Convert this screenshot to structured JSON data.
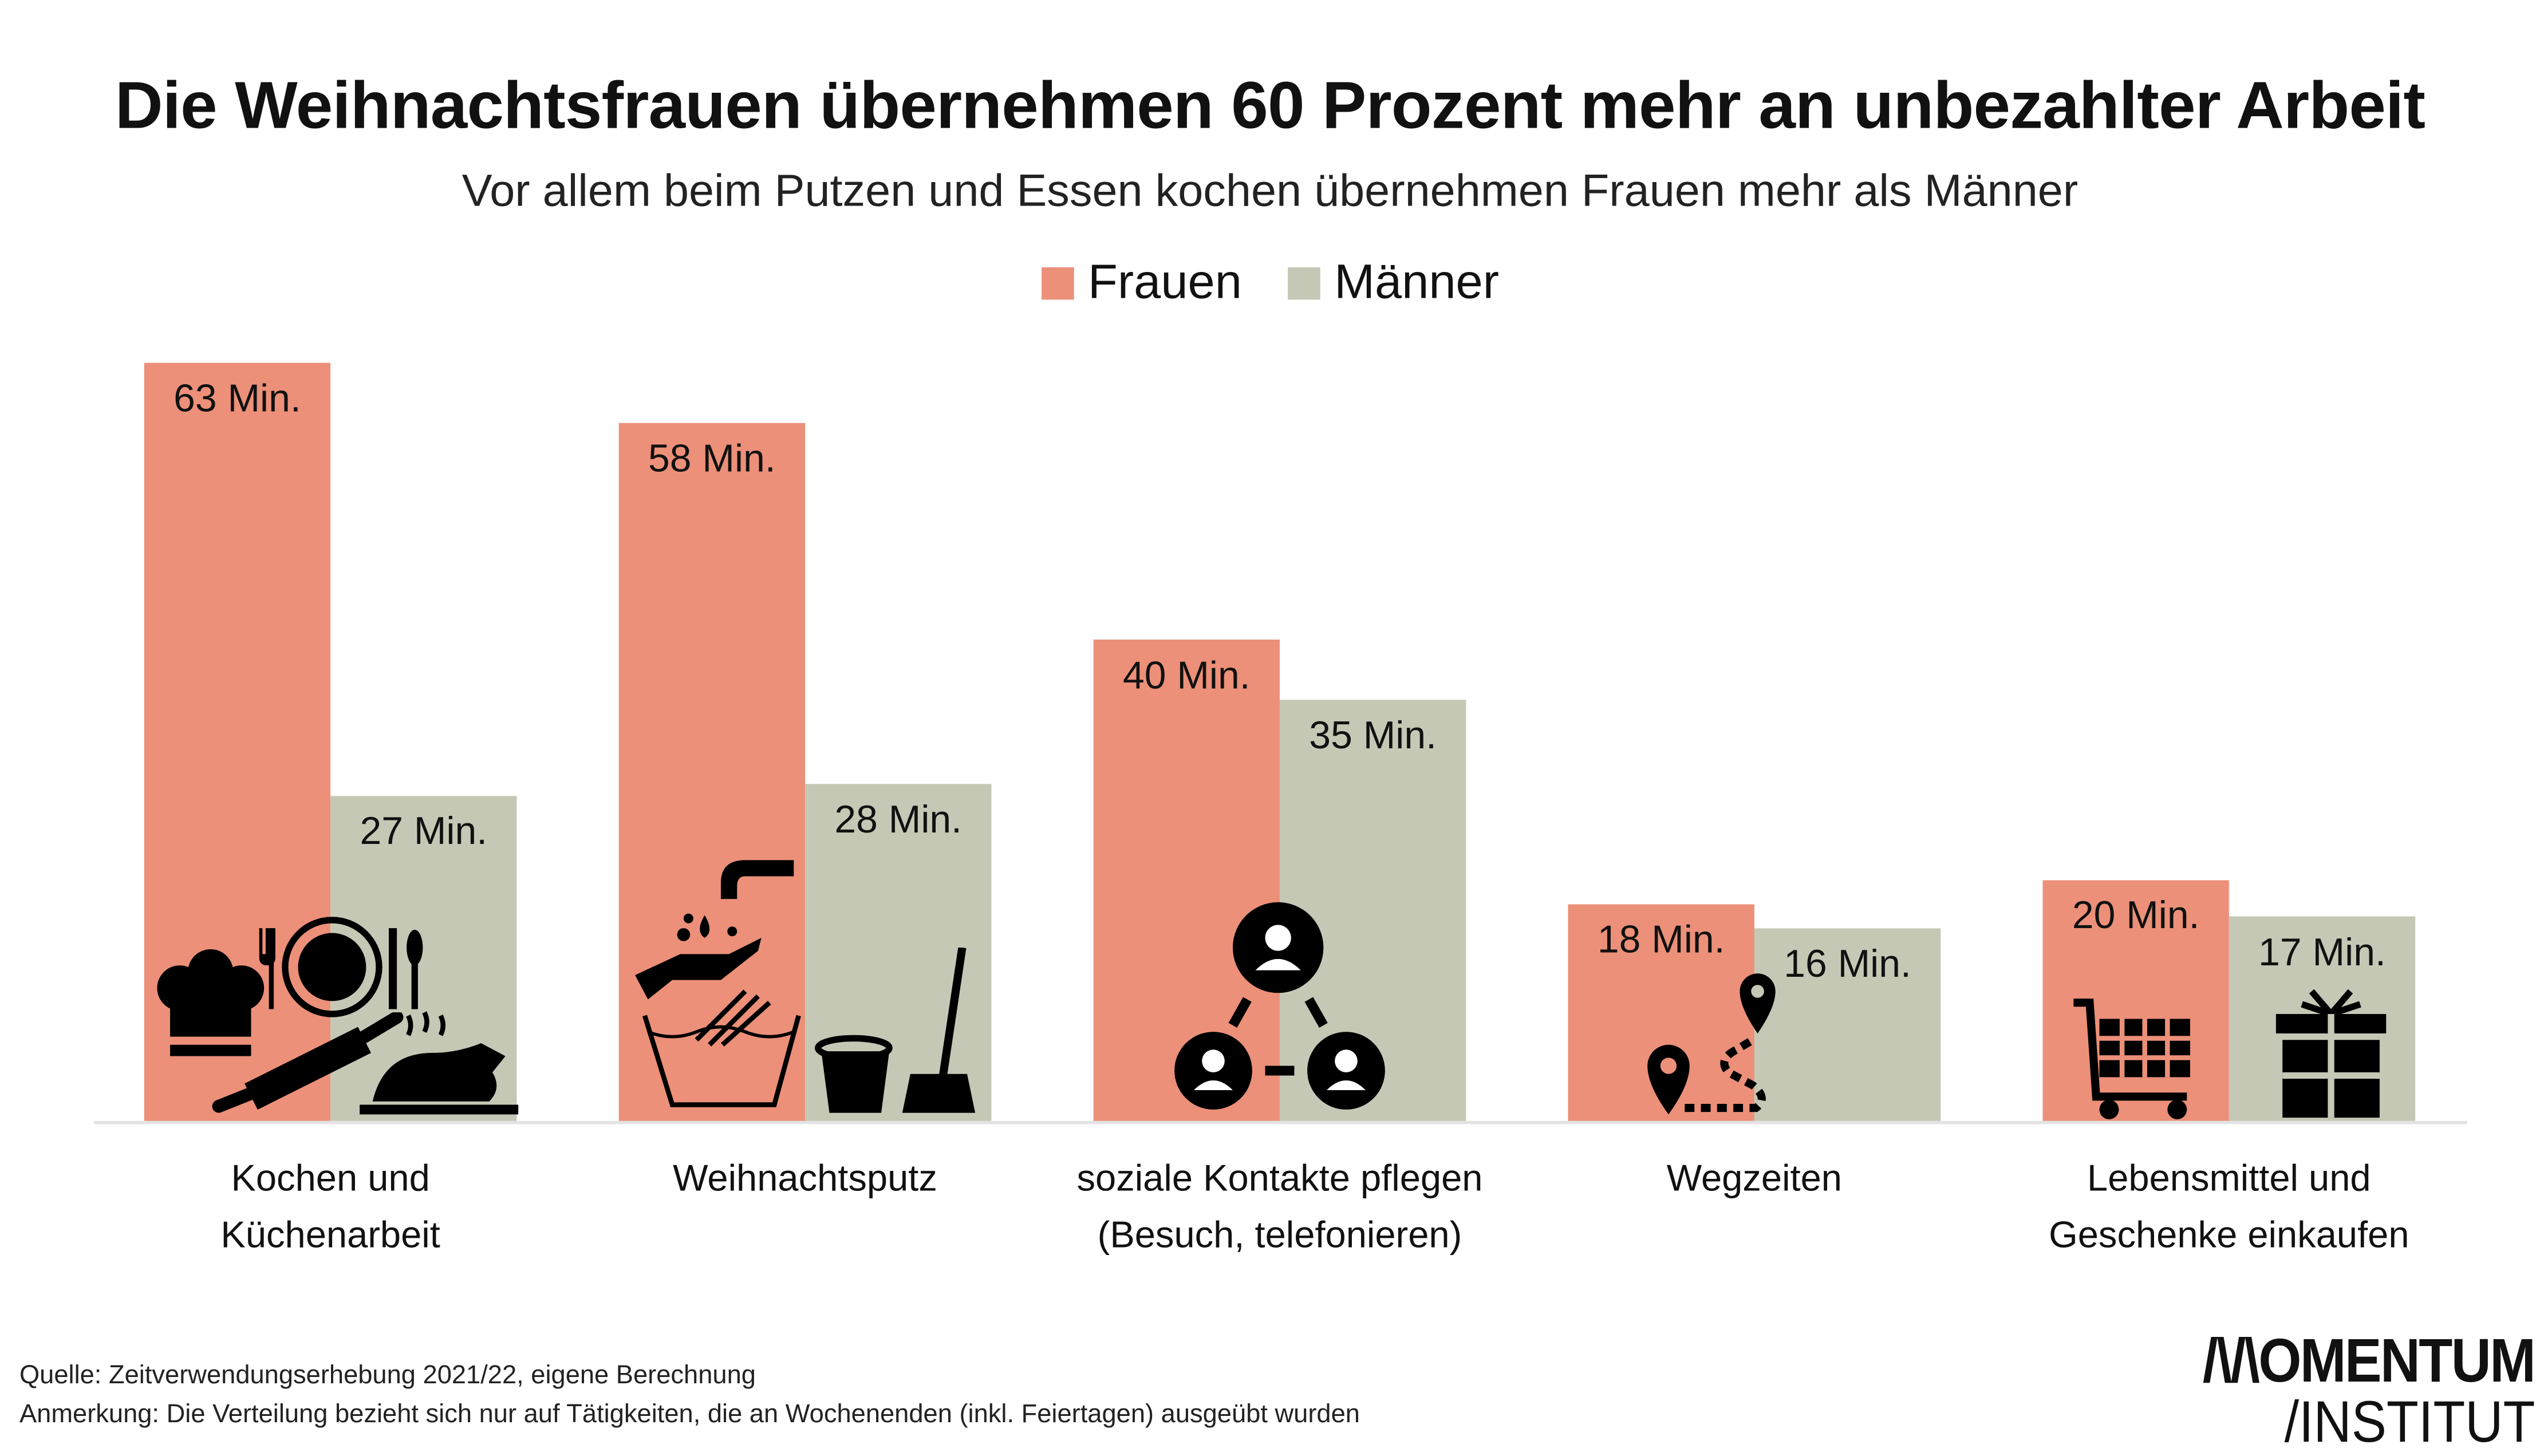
{
  "title": "Die Weihnachtsfrauen übernehmen 60 Prozent mehr an unbezahlter Arbeit",
  "subtitle": "Vor allem beim Putzen und Essen kochen übernehmen Frauen mehr als Männer",
  "colors": {
    "frauen": "#EC9079",
    "maenner": "#C5C8B5",
    "axis": "#E3E3E3",
    "icons": "#000000"
  },
  "chart_data": {
    "type": "bar",
    "categories": [
      "Kochen und\nKüchenarbeit",
      "Weihnachtsputz",
      "soziale Kontakte pflegen\n(Besuch, telefonieren)",
      "Wegzeiten",
      "Lebensmittel und\nGeschenke einkaufen"
    ],
    "series": [
      {
        "name": "Frauen",
        "values": [
          63,
          58,
          40,
          18,
          20
        ],
        "labels": [
          "63 Min.",
          "58 Min.",
          "40 Min.",
          "18 Min.",
          "20 Min."
        ]
      },
      {
        "name": "Männer",
        "values": [
          27,
          28,
          35,
          16,
          17
        ],
        "labels": [
          "27 Min.",
          "28 Min.",
          "35 Min.",
          "16 Min.",
          "17 Min."
        ]
      }
    ],
    "unit": "Min.",
    "ylim": [
      0,
      63
    ],
    "grid": false,
    "legend": "top-center",
    "icons": [
      "chef-hat-plate-rolling-pin-roast-icon",
      "washing-hands-bucket-mop-icon",
      "social-network-people-icon",
      "route-map-pin-icon",
      "shopping-cart-gift-icon"
    ]
  },
  "footer": {
    "source": "Quelle: Zeitverwendungserhebung 2021/22, eigene Berechnung",
    "note": "Anmerkung: Die Verteilung bezieht sich nur auf Tätigkeiten, die an Wochenenden (inkl. Feiertagen) ausgeübt wurden"
  },
  "logo": {
    "line1": "/\\/\\OMENTUM",
    "line2": "/INSTITUT"
  }
}
